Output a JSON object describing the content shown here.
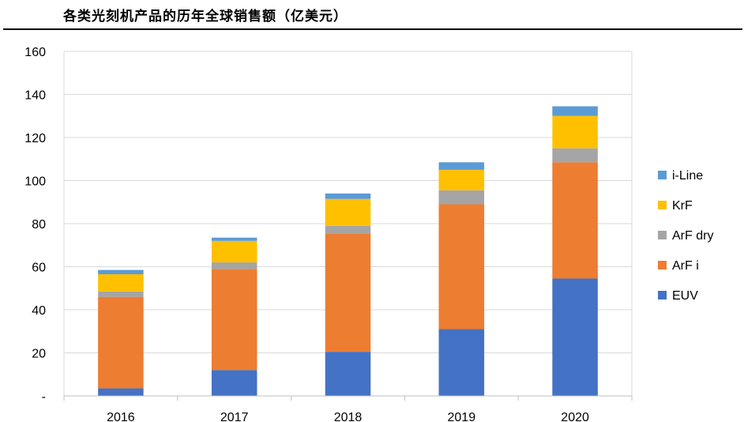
{
  "title": "各类光刻机产品的历年全球销售额（亿美元）",
  "chart_data": {
    "type": "bar",
    "stacked": true,
    "title": "各类光刻机产品的历年全球销售额（亿美元）",
    "categories": [
      "2016",
      "2017",
      "2018",
      "2019",
      "2020"
    ],
    "series": [
      {
        "name": "EUV",
        "color": "#4472C4",
        "values": [
          3.5,
          12,
          20.5,
          31,
          54.5
        ]
      },
      {
        "name": "ArF i",
        "color": "#ED7D31",
        "values": [
          42.5,
          47,
          55,
          58,
          54
        ]
      },
      {
        "name": "ArF dry",
        "color": "#A5A5A5",
        "values": [
          2.5,
          3,
          3.5,
          6.5,
          6.5
        ]
      },
      {
        "name": "KrF",
        "color": "#FFC000",
        "values": [
          8,
          10,
          12.5,
          9.5,
          15
        ]
      },
      {
        "name": "i-Line",
        "color": "#5B9BD5",
        "values": [
          2,
          1.5,
          2.5,
          3.5,
          4.5
        ]
      }
    ],
    "ylim": [
      0,
      160
    ],
    "yticks": [
      "-",
      "20",
      "40",
      "60",
      "80",
      "100",
      "120",
      "140",
      "160"
    ],
    "grid": true,
    "legend_position": "right"
  }
}
